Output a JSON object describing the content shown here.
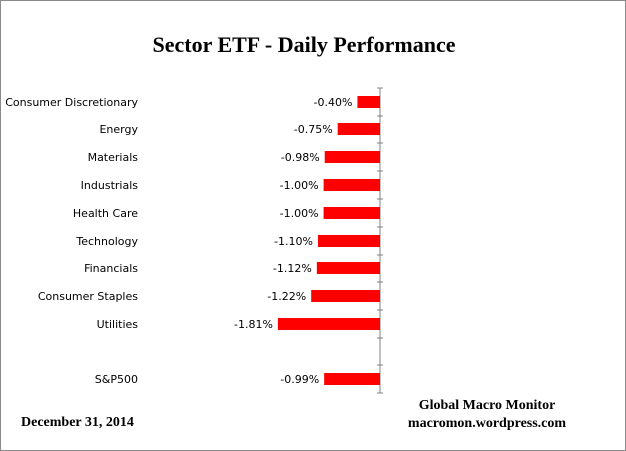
{
  "chart_data": {
    "type": "bar",
    "orientation": "horizontal",
    "title": "Sector ETF - Daily  Performance",
    "categories": [
      "Consumer Discretionary",
      "Energy",
      "Materials",
      "Industrials",
      "Health Care",
      "Technology",
      "Financials",
      "Consumer Staples",
      "Utilities",
      "S&P500"
    ],
    "values": [
      -0.4,
      -0.75,
      -0.98,
      -1.0,
      -1.0,
      -1.1,
      -1.12,
      -1.22,
      -1.81,
      -0.99
    ],
    "data_labels": [
      "-0.40%",
      "-0.75%",
      "-0.98%",
      "-1.00%",
      "-1.00%",
      "-1.10%",
      "-1.12%",
      "-1.22%",
      "-1.81%",
      "-0.99%"
    ],
    "bar_color": "#ff0000",
    "grid": false,
    "legend": "none"
  },
  "footer": {
    "date": "December 31,  2014",
    "credit_line1": "Global Macro Monitor",
    "credit_line2": "macromon.wordpress.com"
  }
}
